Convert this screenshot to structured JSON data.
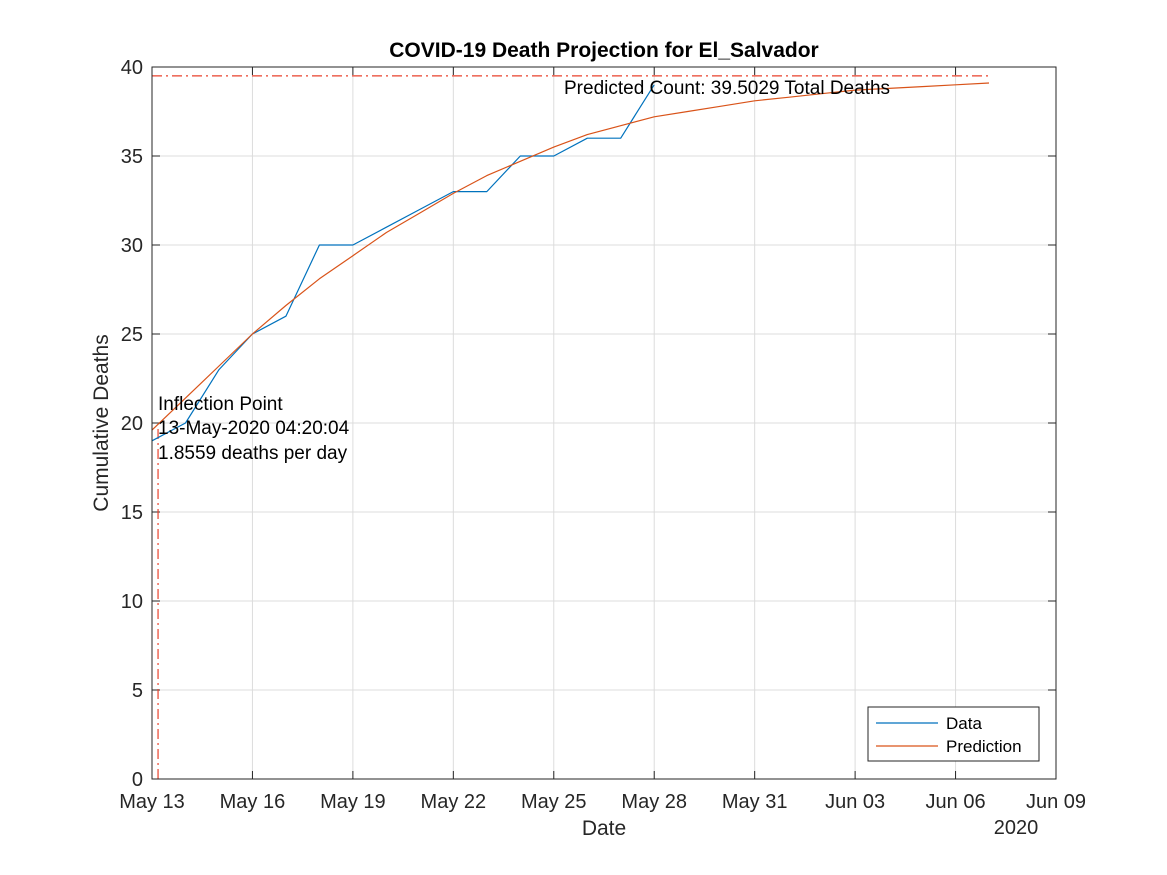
{
  "chart_data": {
    "type": "line",
    "title": "COVID-19 Death Projection for El_Salvador",
    "xlabel": "Date",
    "ylabel": "Cumulative Deaths",
    "year_label": "2020",
    "x_tick_labels": [
      "May 13",
      "May 16",
      "May 19",
      "May 22",
      "May 25",
      "May 28",
      "May 31",
      "Jun 03",
      "Jun 06",
      "Jun 09"
    ],
    "x_tick_values": [
      "2020-05-13",
      "2020-05-16",
      "2020-05-19",
      "2020-05-22",
      "2020-05-25",
      "2020-05-28",
      "2020-05-31",
      "2020-06-03",
      "2020-06-06",
      "2020-06-09"
    ],
    "y_tick_labels": [
      "0",
      "5",
      "10",
      "15",
      "20",
      "25",
      "30",
      "35",
      "40"
    ],
    "xlim": [
      "2020-05-13",
      "2020-06-09"
    ],
    "ylim": [
      0,
      40
    ],
    "grid": true,
    "legend_position": "bottom-right",
    "series": [
      {
        "name": "Data",
        "color": "#0072BD",
        "points": [
          [
            "2020-05-13",
            19
          ],
          [
            "2020-05-14",
            20
          ],
          [
            "2020-05-15",
            23
          ],
          [
            "2020-05-16",
            25
          ],
          [
            "2020-05-17",
            26
          ],
          [
            "2020-05-18",
            30
          ],
          [
            "2020-05-19",
            30
          ],
          [
            "2020-05-20",
            31
          ],
          [
            "2020-05-21",
            32
          ],
          [
            "2020-05-22",
            33
          ],
          [
            "2020-05-23",
            33
          ],
          [
            "2020-05-24",
            35
          ],
          [
            "2020-05-25",
            35
          ],
          [
            "2020-05-26",
            36
          ],
          [
            "2020-05-27",
            36
          ],
          [
            "2020-05-28",
            39
          ]
        ]
      },
      {
        "name": "Prediction",
        "color": "#D95319",
        "points": [
          [
            "2020-05-13",
            19.6
          ],
          [
            "2020-05-14",
            21.4
          ],
          [
            "2020-05-15",
            23.2
          ],
          [
            "2020-05-16",
            25.0
          ],
          [
            "2020-05-17",
            26.6
          ],
          [
            "2020-05-18",
            28.1
          ],
          [
            "2020-05-19",
            29.4
          ],
          [
            "2020-05-20",
            30.7
          ],
          [
            "2020-05-21",
            31.8
          ],
          [
            "2020-05-22",
            32.9
          ],
          [
            "2020-05-23",
            33.9
          ],
          [
            "2020-05-24",
            34.7
          ],
          [
            "2020-05-25",
            35.5
          ],
          [
            "2020-05-26",
            36.2
          ],
          [
            "2020-05-27",
            36.7
          ],
          [
            "2020-05-28",
            37.2
          ],
          [
            "2020-05-29",
            37.5
          ],
          [
            "2020-05-30",
            37.8
          ],
          [
            "2020-05-31",
            38.1
          ],
          [
            "2020-06-01",
            38.3
          ],
          [
            "2020-06-02",
            38.5
          ],
          [
            "2020-06-03",
            38.7
          ],
          [
            "2020-06-04",
            38.8
          ],
          [
            "2020-06-05",
            38.9
          ],
          [
            "2020-06-06",
            39.0
          ],
          [
            "2020-06-07",
            39.1
          ]
        ]
      }
    ],
    "reference_lines": {
      "color": "#E8412C",
      "horizontal_y": 39.5029,
      "horizontal_x_end": "2020-06-07",
      "vertical_x": "2020-05-13T04:20:04",
      "vertical_y_end": 19.75
    },
    "annotations": {
      "predicted_count": "Predicted Count: 39.5029 Total Deaths",
      "inflection_line1": "Inflection Point",
      "inflection_line2": "13-May-2020 04:20:04",
      "inflection_line3": "1.8559 deaths per day"
    }
  }
}
